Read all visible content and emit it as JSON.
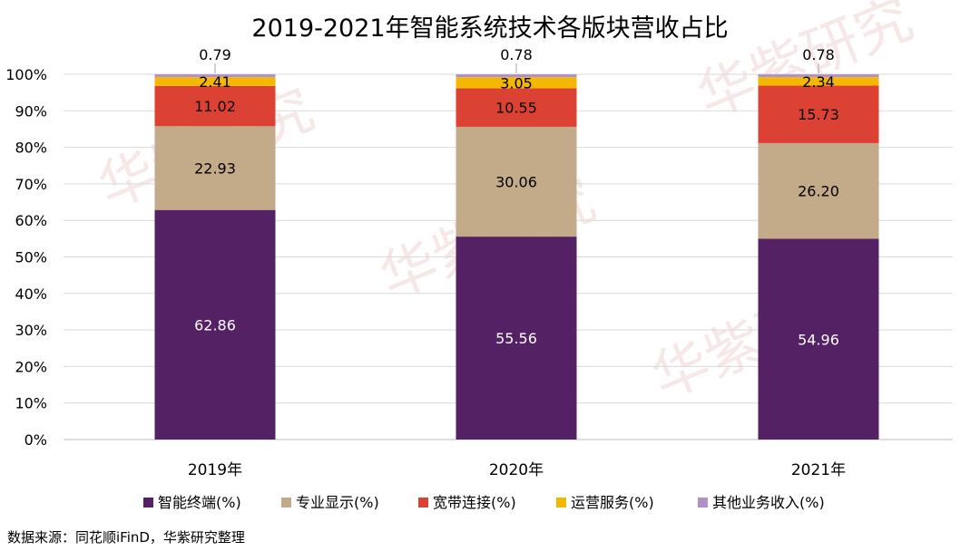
{
  "chart_data": {
    "type": "bar",
    "stacked": true,
    "title": "2019-2021年智能系统技术各版块营收占比",
    "categories": [
      "2019年",
      "2020年",
      "2021年"
    ],
    "ylim": [
      0,
      100
    ],
    "yticks": [
      "0%",
      "10%",
      "20%",
      "30%",
      "40%",
      "50%",
      "60%",
      "70%",
      "80%",
      "90%",
      "100%"
    ],
    "grid": true,
    "legend_position": "bottom",
    "series": [
      {
        "name": "智能终端(%)",
        "color": "#532164",
        "label_color": "#ffffff",
        "values": [
          62.86,
          55.56,
          54.96
        ],
        "labels": [
          "62.86",
          "55.56",
          "54.96"
        ]
      },
      {
        "name": "专业显示(%)",
        "color": "#c3aa88",
        "label_color": "#000000",
        "values": [
          22.93,
          30.06,
          26.2
        ],
        "labels": [
          "22.93",
          "30.06",
          "26.20"
        ]
      },
      {
        "name": "宽带连接(%)",
        "color": "#dc4233",
        "label_color": "#000000",
        "values": [
          11.02,
          10.55,
          15.73
        ],
        "labels": [
          "11.02",
          "10.55",
          "15.73"
        ]
      },
      {
        "name": "运营服务(%)",
        "color": "#f5b800",
        "label_color": "#000000",
        "values": [
          2.41,
          3.05,
          2.34
        ],
        "labels": [
          "2.41",
          "3.05",
          "2.34"
        ]
      },
      {
        "name": "其他业务收入(%)",
        "color": "#b290c8",
        "label_color": "#000000",
        "values": [
          0.79,
          0.78,
          0.78
        ],
        "labels": [
          "0.79",
          "0.78",
          "0.78"
        ]
      }
    ]
  },
  "source_note": "数据来源：同花顺iFinD，华紫研究整理",
  "watermark": "华紫研究"
}
